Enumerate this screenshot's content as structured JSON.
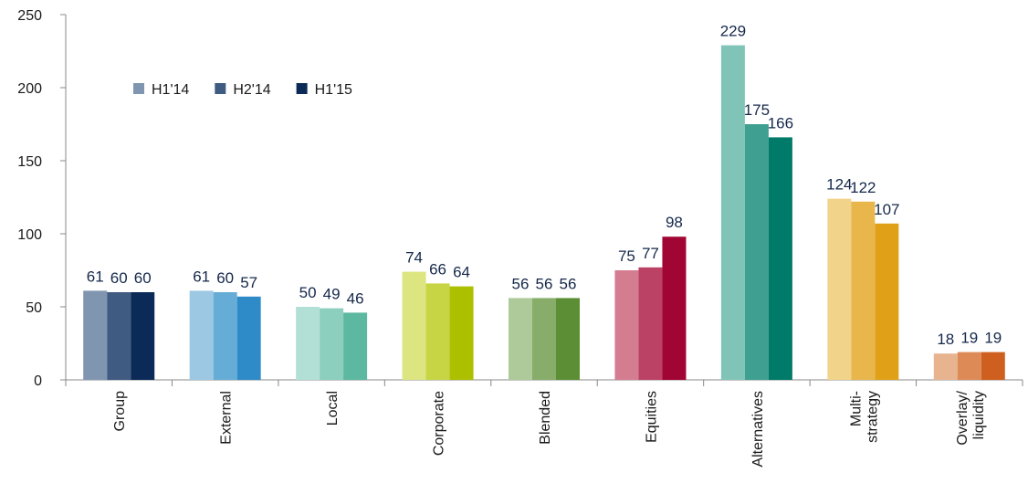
{
  "chart_data": {
    "type": "bar",
    "categories": [
      "Group",
      "External",
      "Local",
      "Corporate",
      "Blended",
      "Equities",
      "Alternatives",
      "Multi-\nstrategy",
      "Overlay/\nliquidity"
    ],
    "series": [
      {
        "name": "H1'14",
        "color": "#8096b0",
        "values": [
          61,
          61,
          50,
          74,
          56,
          75,
          229,
          124,
          18
        ]
      },
      {
        "name": "H2'14",
        "color": "#3f5b82",
        "values": [
          60,
          60,
          49,
          66,
          56,
          77,
          175,
          122,
          19
        ]
      },
      {
        "name": "H1'15",
        "color": "#0b2a57",
        "values": [
          60,
          57,
          46,
          64,
          56,
          98,
          166,
          107,
          19
        ]
      }
    ],
    "category_colors": [
      [
        "#8096b0",
        "#3f5b82",
        "#0b2a57"
      ],
      [
        "#9dc8e4",
        "#65acd6",
        "#2e8bc7"
      ],
      [
        "#b3e0d6",
        "#8ccfbe",
        "#5cb8a0"
      ],
      [
        "#dce57f",
        "#c7d544",
        "#adc000"
      ],
      [
        "#aec99a",
        "#88ad6a",
        "#5c8f35"
      ],
      [
        "#d47c90",
        "#bb4265",
        "#a10534"
      ],
      [
        "#80c4b8",
        "#3f9f90",
        "#007a69"
      ],
      [
        "#f2d38a",
        "#e8b64a",
        "#e0a118"
      ],
      [
        "#e8b38f",
        "#dd8a57",
        "#cf5f1e"
      ]
    ],
    "ylim": [
      0,
      250
    ],
    "yticks": [
      0,
      50,
      100,
      150,
      200,
      250
    ],
    "grid": false,
    "legend": "top-left"
  }
}
